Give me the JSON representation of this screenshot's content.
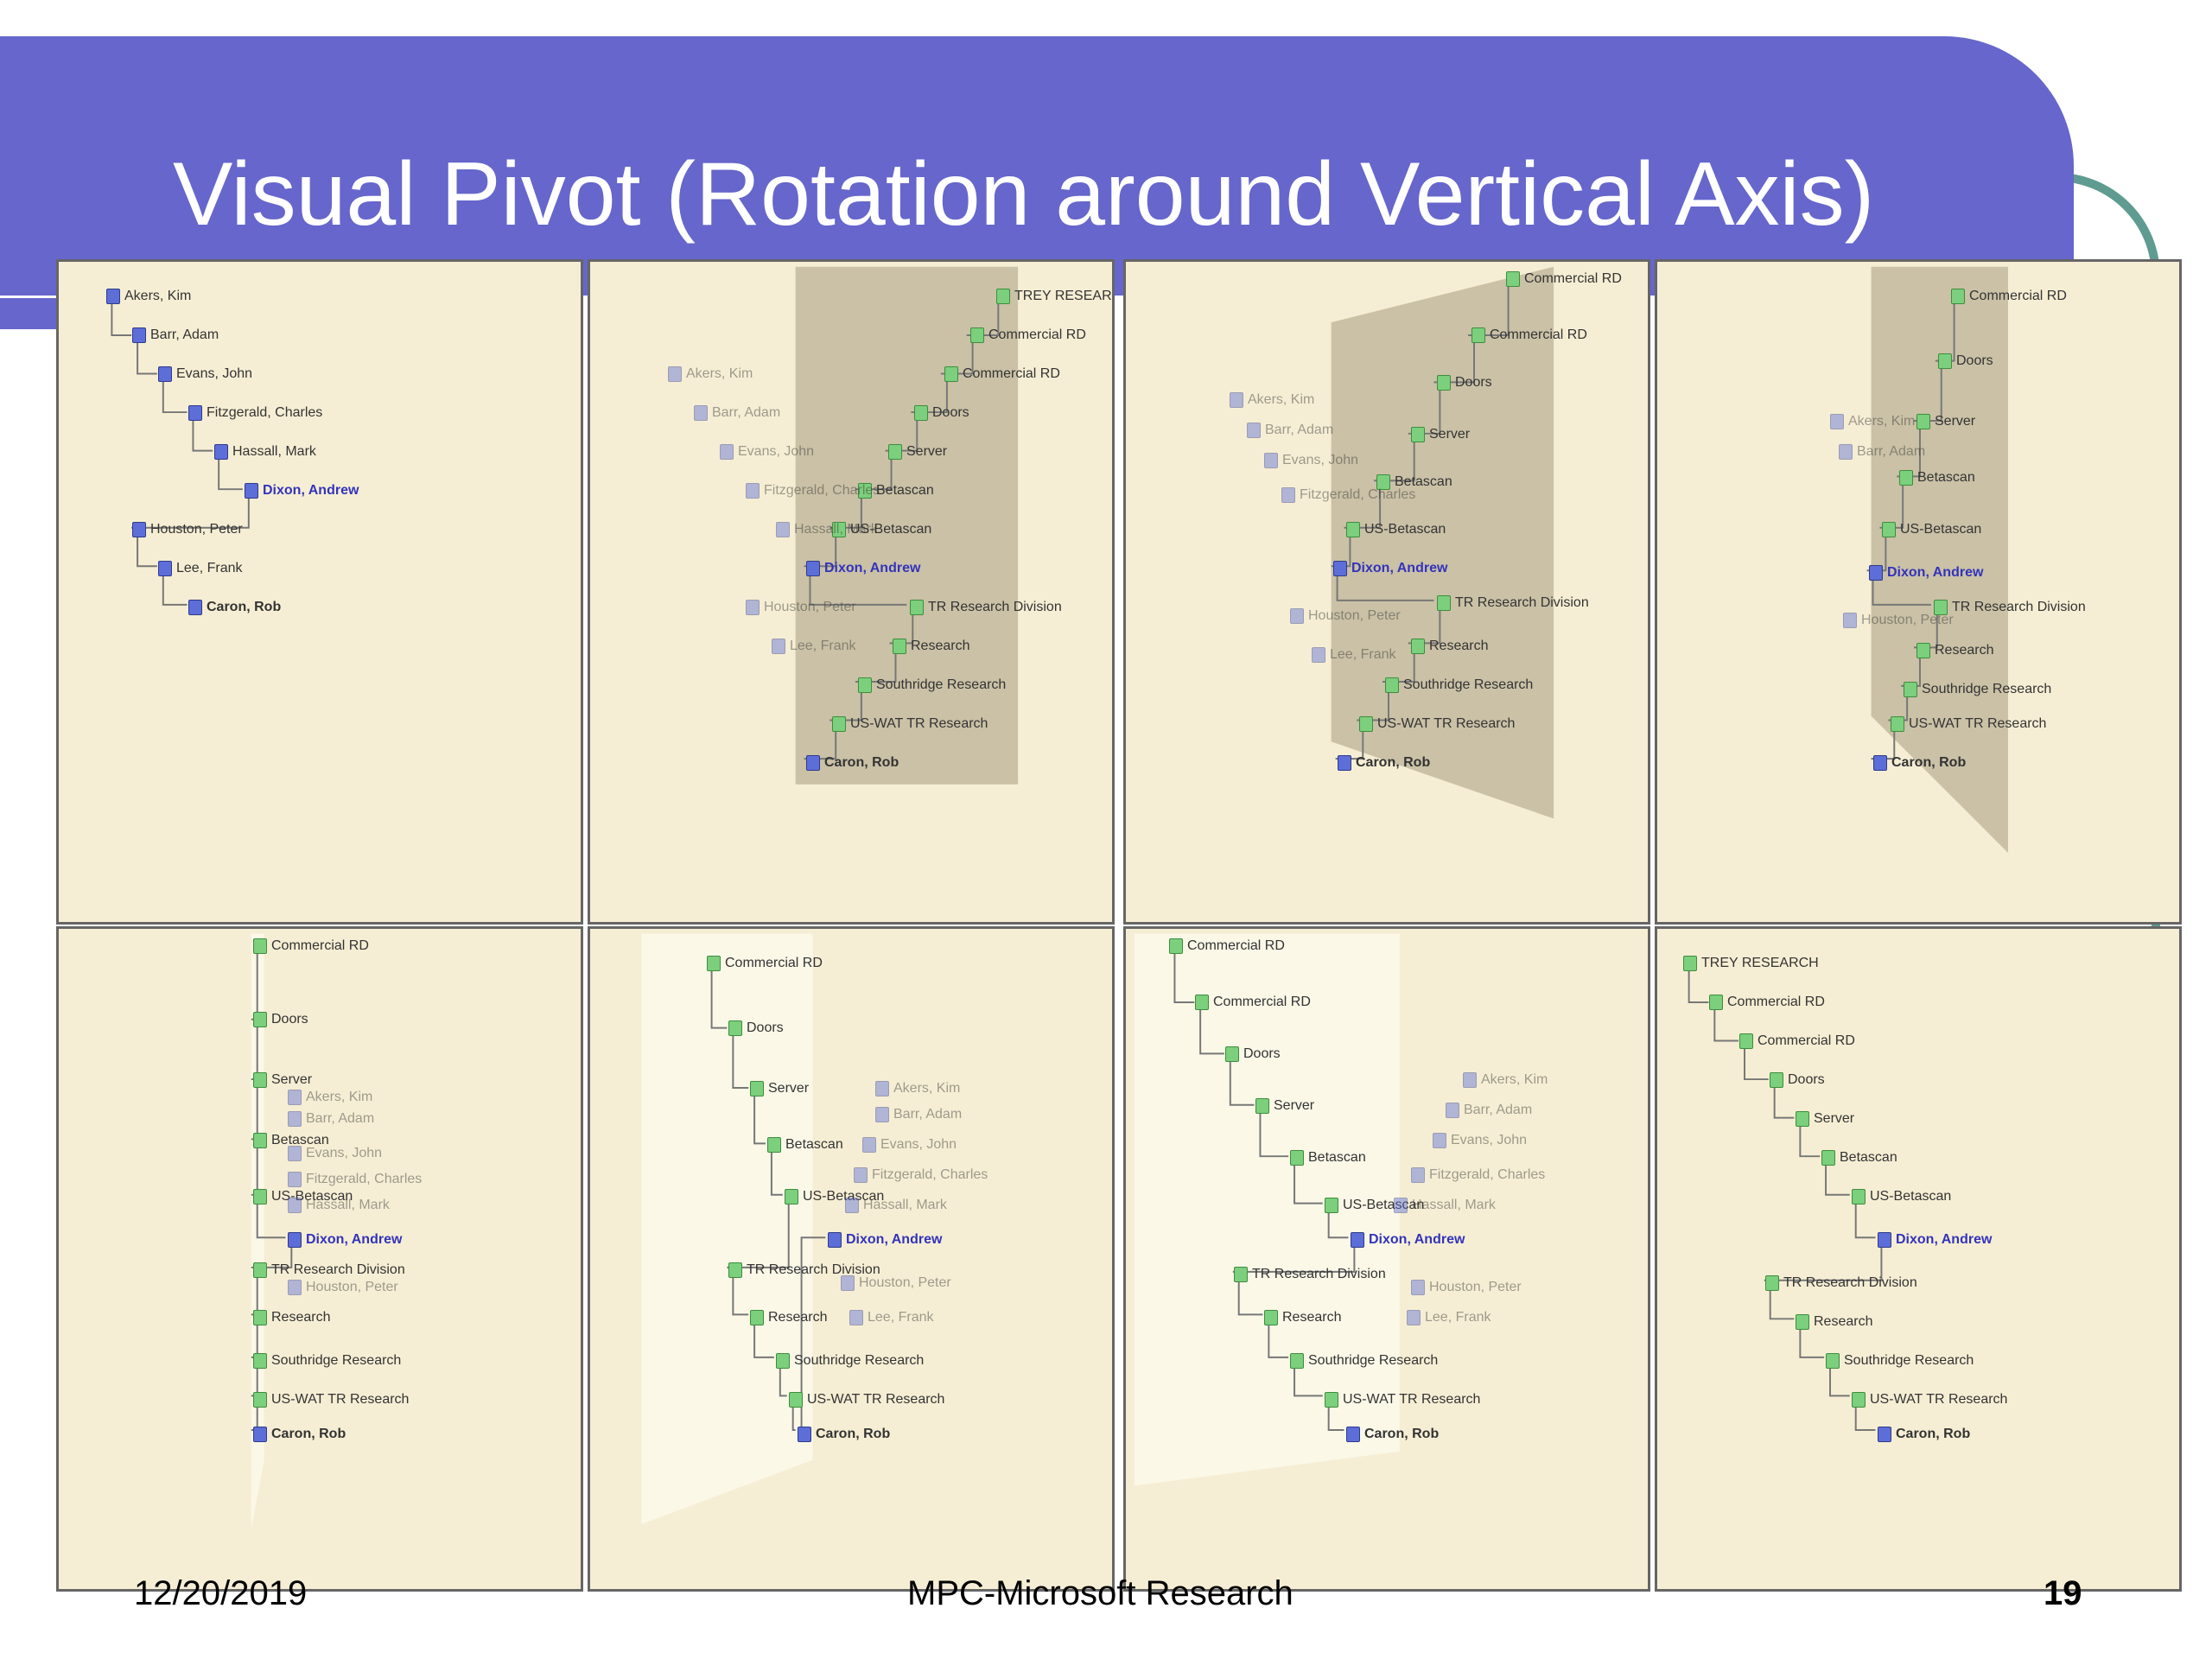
{
  "slide": {
    "title": "Visual Pivot (Rotation around Vertical Axis)",
    "footer_date": "12/20/2019",
    "footer_center": "MPC-Microsoft Research",
    "page_number": "19"
  },
  "colors": {
    "title_band": "#6666cc",
    "panel_bg": "#f6eed4",
    "person_icon": "#5d6ed8",
    "org_icon": "#7ccf7c",
    "accent_arc": "#5f9b90"
  },
  "panels": [
    {
      "label": "frame-1",
      "nodes": [
        {
          "text": "Akers, Kim",
          "icon": "person-icon"
        },
        {
          "text": "Barr, Adam",
          "icon": "person-icon"
        },
        {
          "text": "Evans, John",
          "icon": "person-icon"
        },
        {
          "text": "Fitzgerald, Charles",
          "icon": "person-icon"
        },
        {
          "text": "Hassall, Mark",
          "icon": "person-icon"
        },
        {
          "text": "Dixon, Andrew",
          "icon": "person-icon"
        },
        {
          "text": "Houston, Peter",
          "icon": "person-icon"
        },
        {
          "text": "Lee, Frank",
          "icon": "person-icon"
        },
        {
          "text": "Caron, Rob",
          "icon": "person-icon"
        }
      ]
    },
    {
      "label": "frame-2",
      "nodes": [
        {
          "text": "TREY RESEARCH",
          "icon": "org-icon"
        },
        {
          "text": "Commercial RD",
          "icon": "org-icon"
        },
        {
          "text": "Commercial RD",
          "icon": "org-icon"
        },
        {
          "text": "Doors",
          "icon": "org-icon"
        },
        {
          "text": "Server",
          "icon": "org-icon"
        },
        {
          "text": "Betascan",
          "icon": "org-icon"
        },
        {
          "text": "US-Betascan",
          "icon": "org-icon"
        },
        {
          "text": "Dixon, Andrew",
          "icon": "person-icon"
        },
        {
          "text": "TR Research Division",
          "icon": "org-icon"
        },
        {
          "text": "Research",
          "icon": "org-icon"
        },
        {
          "text": "Southridge Research",
          "icon": "org-icon"
        },
        {
          "text": "US-WAT TR Research",
          "icon": "org-icon"
        },
        {
          "text": "Caron, Rob",
          "icon": "person-icon"
        },
        {
          "text": "Akers, Kim",
          "icon": "person-icon"
        },
        {
          "text": "Barr, Adam",
          "icon": "person-icon"
        },
        {
          "text": "Evans, John",
          "icon": "person-icon"
        },
        {
          "text": "Fitzgerald, Charles",
          "icon": "person-icon"
        },
        {
          "text": "Hassall, Mark",
          "icon": "person-icon"
        },
        {
          "text": "Houston, Peter",
          "icon": "person-icon"
        },
        {
          "text": "Lee, Frank",
          "icon": "person-icon"
        }
      ]
    },
    {
      "label": "frame-3",
      "nodes": [
        {
          "text": "Commercial RD",
          "icon": "org-icon"
        },
        {
          "text": "Commercial RD",
          "icon": "org-icon"
        },
        {
          "text": "Doors",
          "icon": "org-icon"
        },
        {
          "text": "Server",
          "icon": "org-icon"
        },
        {
          "text": "Betascan",
          "icon": "org-icon"
        },
        {
          "text": "US-Betascan",
          "icon": "org-icon"
        },
        {
          "text": "Dixon, Andrew",
          "icon": "person-icon"
        },
        {
          "text": "TR Research Division",
          "icon": "org-icon"
        },
        {
          "text": "Research",
          "icon": "org-icon"
        },
        {
          "text": "Southridge Research",
          "icon": "org-icon"
        },
        {
          "text": "US-WAT TR Research",
          "icon": "org-icon"
        },
        {
          "text": "Caron, Rob",
          "icon": "person-icon"
        },
        {
          "text": "Akers, Kim",
          "icon": "person-icon"
        },
        {
          "text": "Barr, Adam",
          "icon": "person-icon"
        },
        {
          "text": "Evans, John",
          "icon": "person-icon"
        },
        {
          "text": "Fitzgerald, Charles",
          "icon": "person-icon"
        },
        {
          "text": "Houston, Peter",
          "icon": "person-icon"
        },
        {
          "text": "Lee, Frank",
          "icon": "person-icon"
        }
      ]
    },
    {
      "label": "frame-4",
      "nodes": [
        {
          "text": "Commercial RD",
          "icon": "org-icon"
        },
        {
          "text": "Doors",
          "icon": "org-icon"
        },
        {
          "text": "Server",
          "icon": "org-icon"
        },
        {
          "text": "Betascan",
          "icon": "org-icon"
        },
        {
          "text": "US-Betascan",
          "icon": "org-icon"
        },
        {
          "text": "Dixon, Andrew",
          "icon": "person-icon"
        },
        {
          "text": "TR Research Division",
          "icon": "org-icon"
        },
        {
          "text": "Research",
          "icon": "org-icon"
        },
        {
          "text": "Southridge Research",
          "icon": "org-icon"
        },
        {
          "text": "US-WAT TR Research",
          "icon": "org-icon"
        },
        {
          "text": "Caron, Rob",
          "icon": "person-icon"
        },
        {
          "text": "Akers, Kim",
          "icon": "person-icon"
        },
        {
          "text": "Barr, Adam",
          "icon": "person-icon"
        },
        {
          "text": "Houston, Peter",
          "icon": "person-icon"
        }
      ]
    },
    {
      "label": "frame-5",
      "nodes": [
        {
          "text": "Commercial RD",
          "icon": "org-icon"
        },
        {
          "text": "Doors",
          "icon": "org-icon"
        },
        {
          "text": "Server",
          "icon": "org-icon"
        },
        {
          "text": "Akers, Kim",
          "icon": "person-icon"
        },
        {
          "text": "Barr, Adam",
          "icon": "person-icon"
        },
        {
          "text": "Betascan",
          "icon": "org-icon"
        },
        {
          "text": "Evans, John",
          "icon": "person-icon"
        },
        {
          "text": "Fitzgerald, Charles",
          "icon": "person-icon"
        },
        {
          "text": "US-Betascan",
          "icon": "org-icon"
        },
        {
          "text": "Hassall, Mark",
          "icon": "person-icon"
        },
        {
          "text": "Dixon, Andrew",
          "icon": "person-icon"
        },
        {
          "text": "TR Research Division",
          "icon": "org-icon"
        },
        {
          "text": "Houston, Peter",
          "icon": "person-icon"
        },
        {
          "text": "Research",
          "icon": "org-icon"
        },
        {
          "text": "Southridge Research",
          "icon": "org-icon"
        },
        {
          "text": "US-WAT TR Research",
          "icon": "org-icon"
        },
        {
          "text": "Caron, Rob",
          "icon": "person-icon"
        }
      ]
    },
    {
      "label": "frame-6",
      "nodes": [
        {
          "text": "Commercial RD",
          "icon": "org-icon"
        },
        {
          "text": "Doors",
          "icon": "org-icon"
        },
        {
          "text": "Server",
          "icon": "org-icon"
        },
        {
          "text": "Betascan",
          "icon": "org-icon"
        },
        {
          "text": "US-Betascan",
          "icon": "org-icon"
        },
        {
          "text": "TR Research Division",
          "icon": "org-icon"
        },
        {
          "text": "Research",
          "icon": "org-icon"
        },
        {
          "text": "Southridge Research",
          "icon": "org-icon"
        },
        {
          "text": "US-WAT TR Research",
          "icon": "org-icon"
        },
        {
          "text": "Caron, Rob",
          "icon": "person-icon"
        },
        {
          "text": "Akers, Kim",
          "icon": "person-icon"
        },
        {
          "text": "Barr, Adam",
          "icon": "person-icon"
        },
        {
          "text": "Evans, John",
          "icon": "person-icon"
        },
        {
          "text": "Fitzgerald, Charles",
          "icon": "person-icon"
        },
        {
          "text": "Hassall, Mark",
          "icon": "person-icon"
        },
        {
          "text": "Dixon, Andrew",
          "icon": "person-icon"
        },
        {
          "text": "Houston, Peter",
          "icon": "person-icon"
        },
        {
          "text": "Lee, Frank",
          "icon": "person-icon"
        }
      ]
    },
    {
      "label": "frame-7",
      "nodes": [
        {
          "text": "Commercial RD",
          "icon": "org-icon"
        },
        {
          "text": "Commercial RD",
          "icon": "org-icon"
        },
        {
          "text": "Doors",
          "icon": "org-icon"
        },
        {
          "text": "Server",
          "icon": "org-icon"
        },
        {
          "text": "Betascan",
          "icon": "org-icon"
        },
        {
          "text": "US-Betascan",
          "icon": "org-icon"
        },
        {
          "text": "Dixon, Andrew",
          "icon": "person-icon"
        },
        {
          "text": "TR Research Division",
          "icon": "org-icon"
        },
        {
          "text": "Research",
          "icon": "org-icon"
        },
        {
          "text": "Southridge Research",
          "icon": "org-icon"
        },
        {
          "text": "US-WAT TR Research",
          "icon": "org-icon"
        },
        {
          "text": "Caron, Rob",
          "icon": "person-icon"
        },
        {
          "text": "Akers, Kim",
          "icon": "person-icon"
        },
        {
          "text": "Barr, Adam",
          "icon": "person-icon"
        },
        {
          "text": "Evans, John",
          "icon": "person-icon"
        },
        {
          "text": "Fitzgerald, Charles",
          "icon": "person-icon"
        },
        {
          "text": "Hassall, Mark",
          "icon": "person-icon"
        },
        {
          "text": "Houston, Peter",
          "icon": "person-icon"
        },
        {
          "text": "Lee, Frank",
          "icon": "person-icon"
        }
      ]
    },
    {
      "label": "frame-8",
      "nodes": [
        {
          "text": "TREY RESEARCH",
          "icon": "org-icon"
        },
        {
          "text": "Commercial RD",
          "icon": "org-icon"
        },
        {
          "text": "Commercial RD",
          "icon": "org-icon"
        },
        {
          "text": "Doors",
          "icon": "org-icon"
        },
        {
          "text": "Server",
          "icon": "org-icon"
        },
        {
          "text": "Betascan",
          "icon": "org-icon"
        },
        {
          "text": "US-Betascan",
          "icon": "org-icon"
        },
        {
          "text": "Dixon, Andrew",
          "icon": "person-icon"
        },
        {
          "text": "TR Research Division",
          "icon": "org-icon"
        },
        {
          "text": "Research",
          "icon": "org-icon"
        },
        {
          "text": "Southridge Research",
          "icon": "org-icon"
        },
        {
          "text": "US-WAT TR Research",
          "icon": "org-icon"
        },
        {
          "text": "Caron, Rob",
          "icon": "person-icon"
        }
      ]
    }
  ]
}
